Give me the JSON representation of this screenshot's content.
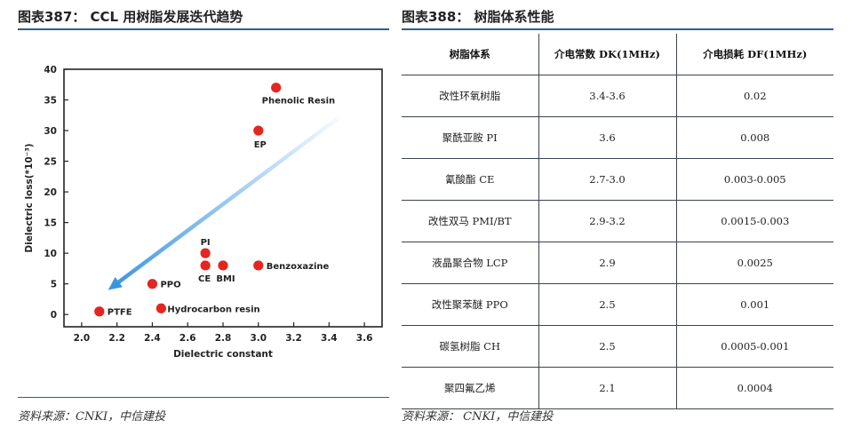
{
  "left_panel": {
    "title": "图表387：  CCL 用树脂发展迭代趋势",
    "source": "资料来源：CNKI，中信建投"
  },
  "right_panel": {
    "title": "图表388：  树脂体系性能",
    "source": "资料来源：  CNKI，中信建投"
  },
  "chart_data": {
    "type": "scatter",
    "xlabel": "Dielectric constant",
    "ylabel": "Dielectric loss(*10⁻³)",
    "xlim": [
      1.9,
      3.7
    ],
    "ylim": [
      -2,
      40
    ],
    "xticks": [
      "2.0",
      "2.2",
      "2.4",
      "2.6",
      "2.8",
      "3.0",
      "3.2",
      "3.4",
      "3.6"
    ],
    "yticks": [
      "0",
      "5",
      "10",
      "15",
      "20",
      "25",
      "30",
      "35",
      "40"
    ],
    "grid": false,
    "point_color": "#e3261f",
    "arrow_color": "#3a95e0",
    "points": [
      {
        "label": "PTFE",
        "x": 2.1,
        "y": 0.5
      },
      {
        "label": "PPO",
        "x": 2.4,
        "y": 5
      },
      {
        "label": "Hydrocarbon resin",
        "x": 2.45,
        "y": 1
      },
      {
        "label": "PI",
        "x": 2.7,
        "y": 10
      },
      {
        "label": "CE",
        "x": 2.7,
        "y": 8
      },
      {
        "label": "BMI",
        "x": 2.8,
        "y": 8
      },
      {
        "label": "Benzoxazine",
        "x": 3.0,
        "y": 8
      },
      {
        "label": "EP",
        "x": 3.0,
        "y": 30
      },
      {
        "label": "Phenolic Resin",
        "x": 3.1,
        "y": 37
      }
    ],
    "arrow": {
      "from": {
        "x": 3.45,
        "y": 32
      },
      "to": {
        "x": 2.15,
        "y": 4
      }
    }
  },
  "table": {
    "headers": [
      "树脂体系",
      "介电常数 DK(1MHz)",
      "介电损耗 DF(1MHz)"
    ],
    "rows": [
      [
        "改性环氧树脂",
        "3.4-3.6",
        "0.02"
      ],
      [
        "聚酰亚胺 PI",
        "3.6",
        "0.008"
      ],
      [
        "氰酸酯 CE",
        "2.7-3.0",
        "0.003-0.005"
      ],
      [
        "改性双马 PMI/BT",
        "2.9-3.2",
        "0.0015-0.003"
      ],
      [
        "液晶聚合物 LCP",
        "2.9",
        "0.0025"
      ],
      [
        "改性聚苯醚 PPO",
        "2.5",
        "0.001"
      ],
      [
        "碳氢树脂 CH",
        "2.5",
        "0.0005-0.001"
      ],
      [
        "聚四氟乙烯",
        "2.1",
        "0.0004"
      ]
    ]
  }
}
